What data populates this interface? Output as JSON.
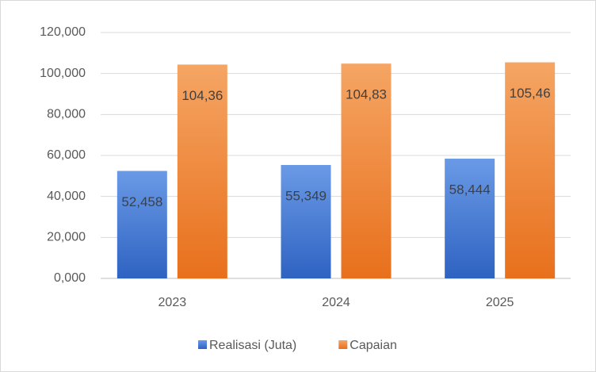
{
  "chart_data": {
    "type": "bar",
    "categories": [
      "2023",
      "2024",
      "2025"
    ],
    "series": [
      {
        "name": "Realisasi (Juta)",
        "color": "#4472c4",
        "values": [
          52.458,
          55.349,
          58.444
        ],
        "value_labels": [
          "52,458",
          "55,349",
          "58,444"
        ]
      },
      {
        "name": "Capaian",
        "color": "#ed7d31",
        "values": [
          104.36,
          104.83,
          105.46
        ],
        "value_labels": [
          "104,36",
          "104,83",
          "105,46"
        ]
      }
    ],
    "ylim": [
      0,
      120
    ],
    "yticks": [
      {
        "value": 0,
        "label": "0,000"
      },
      {
        "value": 20,
        "label": "20,000"
      },
      {
        "value": 40,
        "label": "40,000"
      },
      {
        "value": 60,
        "label": "60,000"
      },
      {
        "value": 80,
        "label": "80,000"
      },
      {
        "value": 100,
        "label": "100,000"
      },
      {
        "value": 120,
        "label": "120,000"
      }
    ],
    "grid": true,
    "legend": "bottom"
  }
}
